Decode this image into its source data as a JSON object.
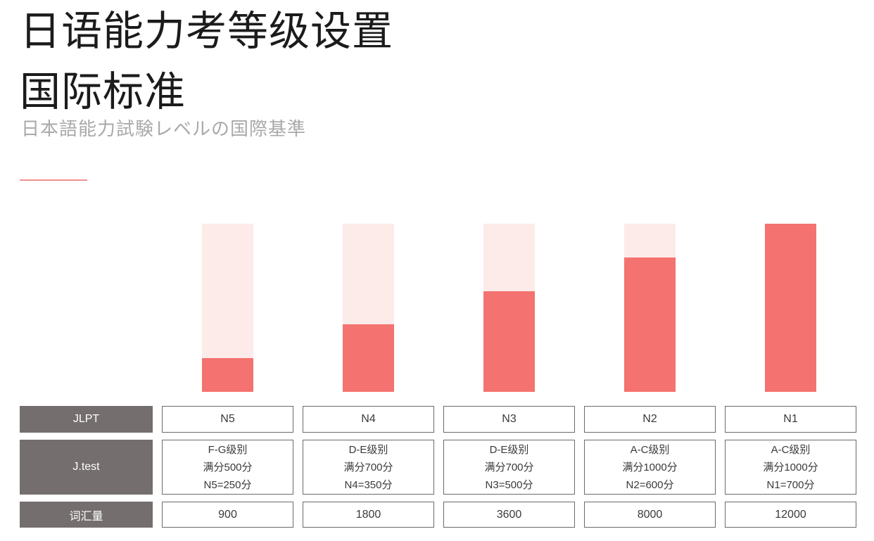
{
  "header": {
    "title_line1": "日语能力考等级设置",
    "title_line2": "国际标准",
    "subtitle": "日本語能力試験レベルの国際基準"
  },
  "colors": {
    "bar_fill": "#f4726f",
    "bar_track": "#fcebe9",
    "divider": "#ef908d",
    "header_bg": "#746e6e",
    "cell_border": "#6e6969",
    "subtitle_color": "#a9a9a9"
  },
  "chart_data": {
    "type": "bar",
    "title": "",
    "xlabel": "",
    "ylabel": "",
    "categories": [
      "N5",
      "N4",
      "N3",
      "N2",
      "N1"
    ],
    "values": [
      20,
      40,
      60,
      80,
      100
    ],
    "value_unit": "percent of full track height",
    "ylim": [
      0,
      100
    ],
    "grid": false,
    "legend": "none",
    "style_note": "each category drawn as a light-pink full-height track with salmon fill from bottom"
  },
  "table": {
    "jlpt_row": {
      "label": "JLPT",
      "values": [
        "N5",
        "N4",
        "N3",
        "N2",
        "N1"
      ]
    },
    "jtest_row": {
      "label": "J.test",
      "cells": [
        {
          "l1": "F-G级别",
          "l2": "满分500分",
          "l3": "N5=250分"
        },
        {
          "l1": "D-E级别",
          "l2": "满分700分",
          "l3": "N4=350分"
        },
        {
          "l1": "D-E级别",
          "l2": "满分700分",
          "l3": "N3=500分"
        },
        {
          "l1": "A-C级别",
          "l2": "满分1000分",
          "l3": "N2=600分"
        },
        {
          "l1": "A-C级别",
          "l2": "满分1000分",
          "l3": "N1=700分"
        }
      ]
    },
    "vocab_row": {
      "label": "词汇量",
      "values": [
        "900",
        "1800",
        "3600",
        "8000",
        "12000"
      ]
    }
  }
}
